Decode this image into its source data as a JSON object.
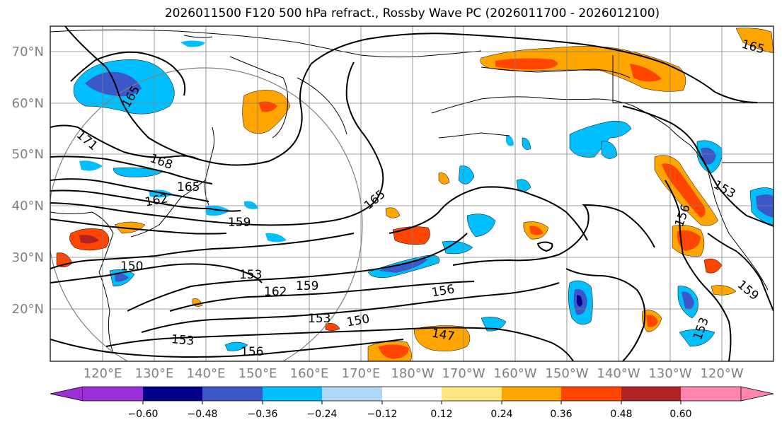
{
  "title": "2026011500 F120 500 hPa refract., Rossby Wave PC (2026011700 - 2026012100)",
  "lat_labels": [
    "70°N",
    "60°N",
    "50°N",
    "40°N",
    "30°N",
    "20°N"
  ],
  "lon_labels": [
    "120°E",
    "130°E",
    "140°E",
    "150°E",
    "160°E",
    "170°E",
    "180°W",
    "170°W",
    "160°W",
    "150°W",
    "140°W",
    "130°W",
    "120°W"
  ],
  "colorbar": {
    "ticks": [
      "−0.60",
      "−0.48",
      "−0.36",
      "−0.24",
      "−0.12",
      "0.12",
      "0.24",
      "0.36",
      "0.48",
      "0.60"
    ],
    "colors": [
      "#9b30d8",
      "#00008b",
      "#3b57c8",
      "#00bfff",
      "#add8f7",
      "#ffffff",
      "#ffe680",
      "#ffa500",
      "#ff4500",
      "#b22222",
      "#ff85b0"
    ]
  },
  "contour_labels": [
    "165",
    "171",
    "168",
    "165",
    "162",
    "159",
    "150",
    "153",
    "162",
    "159",
    "153",
    "150",
    "147",
    "156",
    "156",
    "165",
    "153",
    "156",
    "159",
    "153",
    "153",
    "165"
  ],
  "colors": {
    "coast": "#000000",
    "grid": "#808080",
    "contour": "#000000",
    "axis_label": "#808080"
  }
}
